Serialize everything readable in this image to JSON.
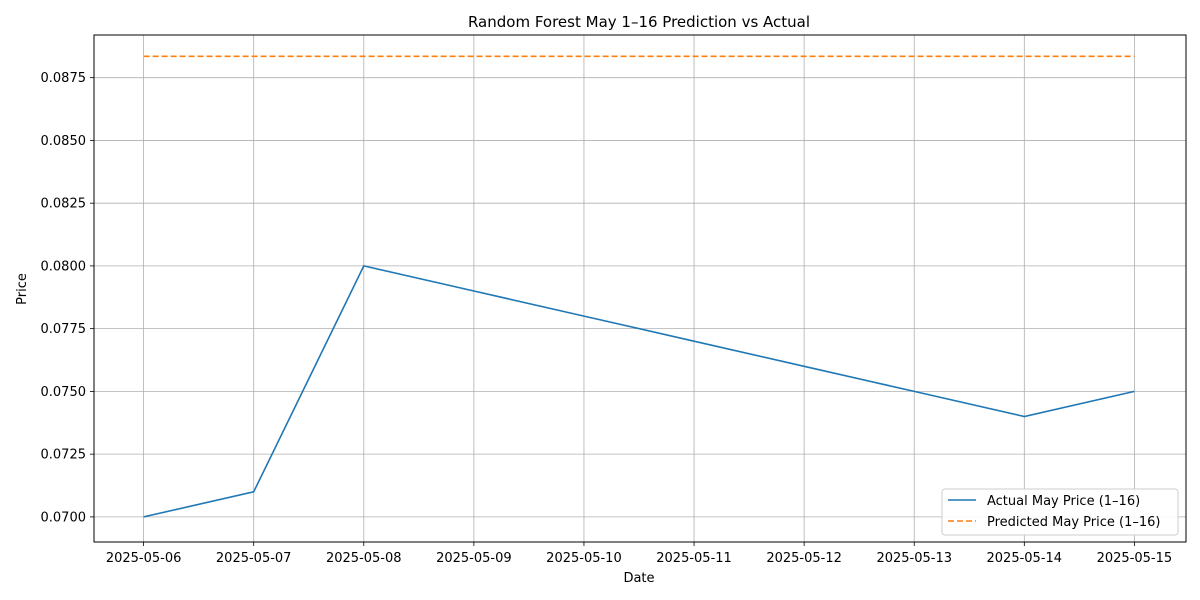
{
  "chart_data": {
    "type": "line",
    "title": "Random Forest May 1–16 Prediction vs Actual",
    "xlabel": "Date",
    "ylabel": "Price",
    "x": [
      "2025-05-06",
      "2025-05-07",
      "2025-05-08",
      "2025-05-09",
      "2025-05-10",
      "2025-05-11",
      "2025-05-12",
      "2025-05-13",
      "2025-05-14",
      "2025-05-15"
    ],
    "xlim": [
      "2025-05-06",
      "2025-05-15"
    ],
    "ylim": [
      0.069,
      0.0892
    ],
    "yticks": [
      "0.0700",
      "0.0725",
      "0.0750",
      "0.0775",
      "0.0800",
      "0.0825",
      "0.0850",
      "0.0875"
    ],
    "grid": true,
    "legend": "lower-right",
    "series": [
      {
        "name": "Actual May Price (1–16)",
        "color": "#1f77b4",
        "style": "solid",
        "values": [
          0.07,
          0.071,
          0.08,
          0.079,
          0.078,
          0.077,
          0.076,
          0.075,
          0.074,
          0.075
        ]
      },
      {
        "name": "Predicted May Price (1–16)",
        "color": "#ff7f0e",
        "style": "dashed",
        "values": [
          0.08835,
          0.08835,
          0.08835,
          0.08835,
          0.08835,
          0.08835,
          0.08835,
          0.08835,
          0.08835,
          0.08835
        ]
      }
    ]
  }
}
